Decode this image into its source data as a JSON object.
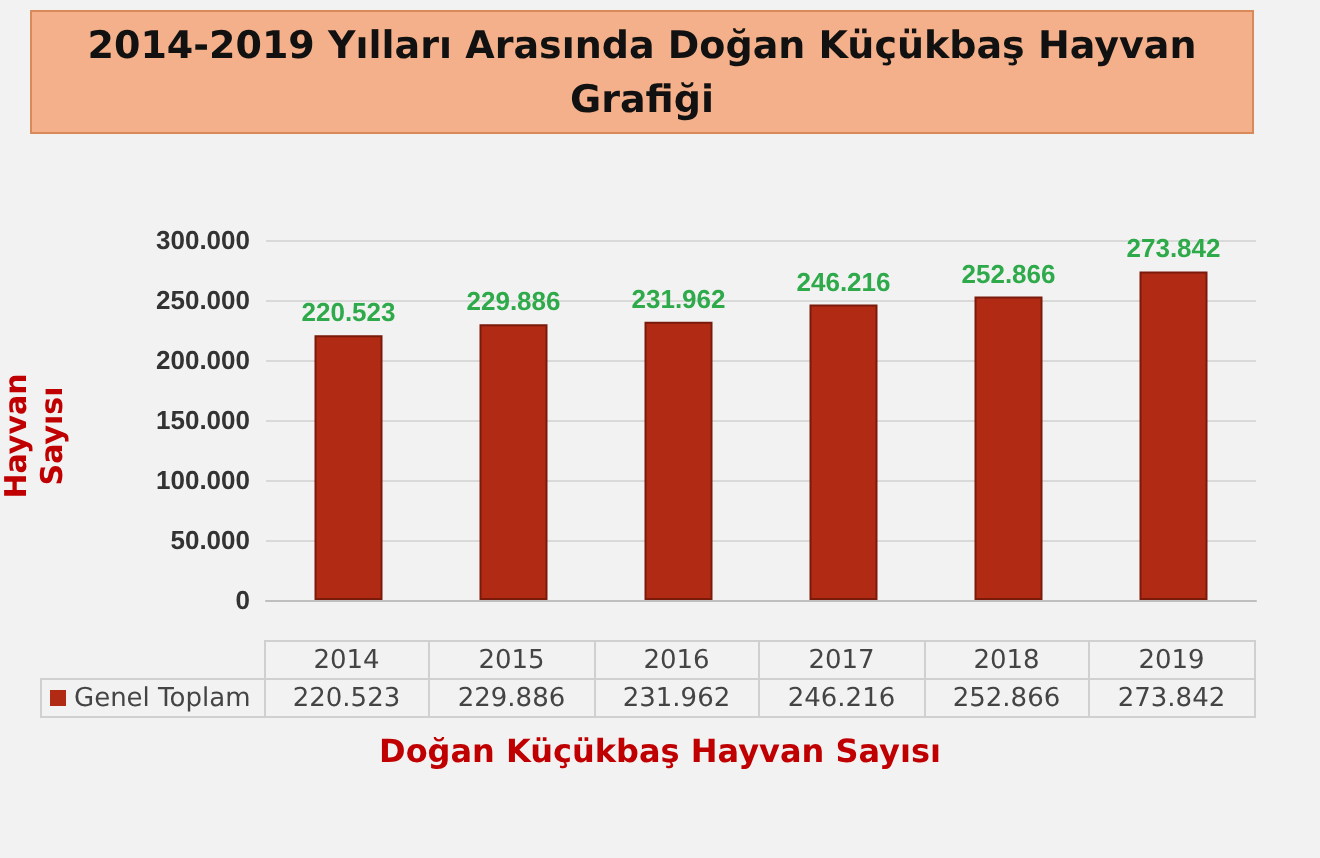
{
  "chart_data": {
    "type": "bar",
    "title": "2014-2019 Yılları Arasında Doğan Küçükbaş Hayvan Grafiği",
    "xlabel": "Doğan Küçükbaş Hayvan Sayısı",
    "ylabel": "Hayvan Sayısı",
    "categories": [
      "2014",
      "2015",
      "2016",
      "2017",
      "2018",
      "2019"
    ],
    "series": [
      {
        "name": "Genel Toplam",
        "color": "#b02a14",
        "values": [
          220523,
          229886,
          231962,
          246216,
          252866,
          273842
        ],
        "value_labels": [
          "220.523",
          "229.886",
          "231.962",
          "246.216",
          "252.866",
          "273.842"
        ]
      }
    ],
    "ylim": [
      0,
      300000
    ],
    "yticks": [
      {
        "value": 0,
        "label": "0"
      },
      {
        "value": 50000,
        "label": "50.000"
      },
      {
        "value": 100000,
        "label": "100.000"
      },
      {
        "value": 150000,
        "label": "150.000"
      },
      {
        "value": 200000,
        "label": "200.000"
      },
      {
        "value": 250000,
        "label": "250.000"
      },
      {
        "value": 300000,
        "label": "300.000"
      }
    ],
    "grid": "y",
    "legend": "bottom"
  }
}
